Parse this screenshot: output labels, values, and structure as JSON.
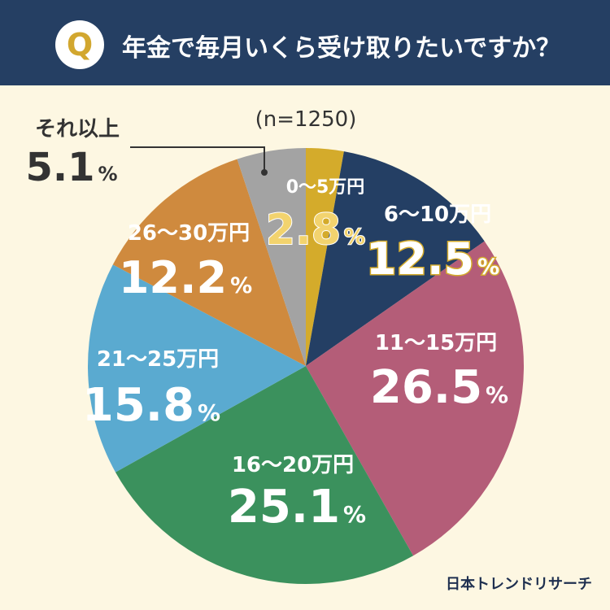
{
  "header": {
    "badge": "Q",
    "question": "年金で毎月いくら受け取りたいですか？"
  },
  "sample_size": "(n=1250)",
  "footer": {
    "logo": "日本トレンドリサーチ"
  },
  "colors": {
    "header_bg": "#253f63",
    "page_bg": "#fdf7e2",
    "accent_gold": "#d2a72f"
  },
  "chart_data": {
    "type": "pie",
    "title": "年金で毎月いくら受け取りたいですか？",
    "categories": [
      "0～5万円",
      "6～10万円",
      "11～15万円",
      "16～20万円",
      "21～25万円",
      "26～30万円",
      "それ以上"
    ],
    "values": [
      2.8,
      12.5,
      26.5,
      25.1,
      15.8,
      12.2,
      5.1
    ],
    "value_labels": [
      "2.8",
      "12.5",
      "26.5",
      "25.1",
      "15.8",
      "12.2",
      "5.1"
    ],
    "unit": "%",
    "colors": [
      "#d4ab2b",
      "#243f64",
      "#b45d78",
      "#3b915d",
      "#5aaad0",
      "#cf8a3e",
      "#a3a3a3"
    ],
    "label_colors": [
      "#f2d36e",
      "#ffffff",
      "#ffffff",
      "#ffffff",
      "#ffffff",
      "#ffffff",
      "#333333"
    ],
    "start": "12 o'clock, clockwise"
  }
}
